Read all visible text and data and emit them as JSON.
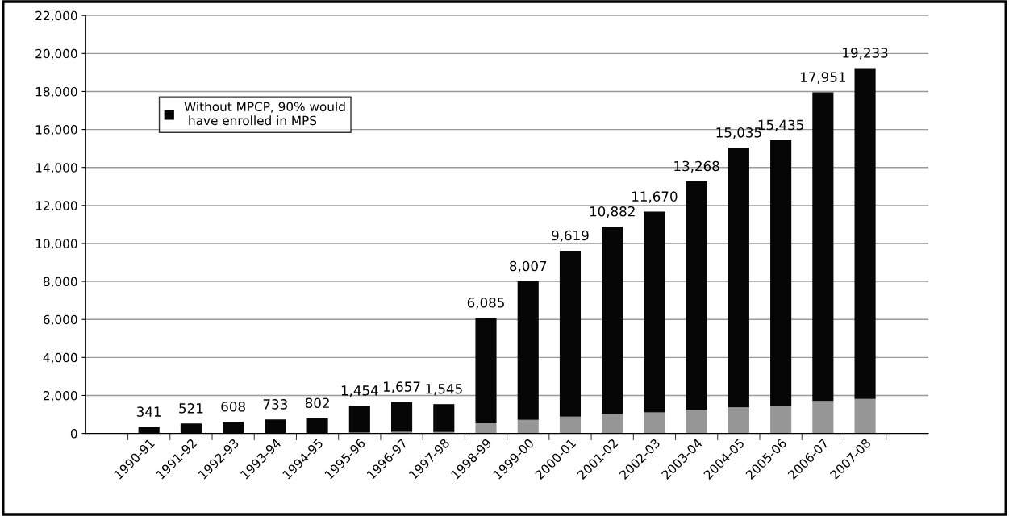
{
  "chart_data": {
    "type": "bar",
    "stacked": true,
    "categories": [
      null,
      "1990-91",
      "1991-92",
      "1992-93",
      "1993-94",
      "1994-95",
      "1995-96",
      "1996-97",
      "1997-98",
      "1998-99",
      "1999-00",
      "2000-01",
      "2001-02",
      "2002-03",
      "2003-04",
      "2004-05",
      "2005-06",
      "2006-07",
      "2007-08",
      null
    ],
    "series": [
      {
        "color": "#969696",
        "values": [
          null,
          0,
          0,
          0,
          0,
          0,
          50,
          90,
          80,
          540,
          720,
          890,
          1020,
          1110,
          1260,
          1370,
          1430,
          1710,
          1820,
          null
        ]
      },
      {
        "name": "Without MPCP, 90% would have enrolled in MPS",
        "color": "#060606",
        "values": [
          null,
          341,
          521,
          608,
          733,
          802,
          1404,
          1567,
          1465,
          5545,
          7287,
          8729,
          9862,
          10560,
          12008,
          13665,
          14005,
          16241,
          17413,
          null
        ]
      }
    ],
    "totals": [
      null,
      "341",
      "521",
      "608",
      "733",
      "802",
      "1,454",
      "1,657",
      "1,545",
      "6,085",
      "8,007",
      "9,619",
      "10,882",
      "11,670",
      "13,268",
      "15,035",
      "15,435",
      "17,951",
      "19,233",
      null
    ],
    "ylim": [
      0,
      22000
    ],
    "yticks": [
      0,
      {
        "value": 2000,
        "label": "2,000"
      },
      {
        "value": 4000,
        "label": "4,000"
      },
      {
        "value": 6000,
        "label": "6,000"
      },
      {
        "value": 8000,
        "label": "8,000"
      },
      {
        "value": 10000,
        "label": "10,000"
      },
      {
        "value": 12000,
        "label": "12,000"
      },
      {
        "value": 14000,
        "label": "14,000"
      },
      {
        "value": 16000,
        "label": "16,000"
      },
      {
        "value": 18000,
        "label": "18,000"
      },
      {
        "value": 20000,
        "label": "20,000"
      },
      {
        "value": 22000,
        "label": "22,000"
      }
    ],
    "grid": "y",
    "legend": "top left"
  }
}
